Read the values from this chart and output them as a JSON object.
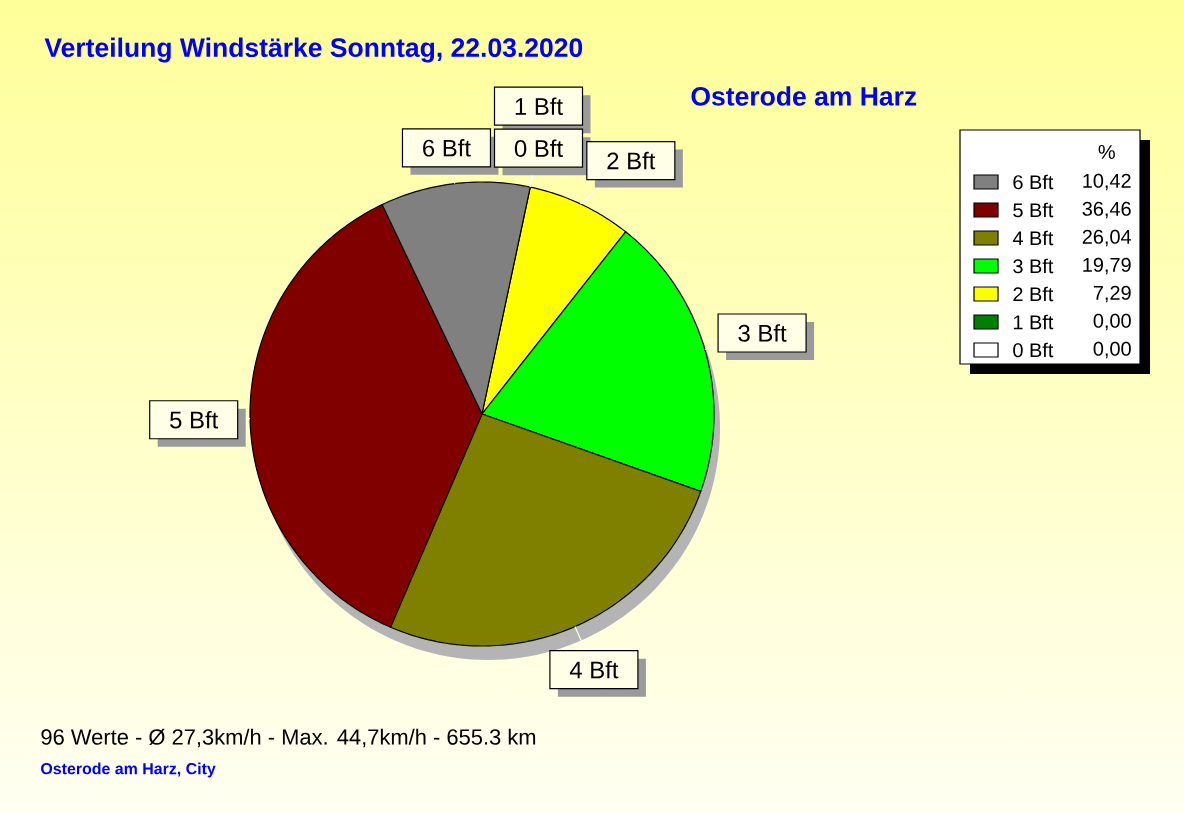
{
  "chart_data": {
    "type": "pie",
    "title": "Verteilung Windstärke  Sonntag, 22.03.2020",
    "subtitle": "Osterode am Harz",
    "categories": [
      "6 Bft",
      "5 Bft",
      "4 Bft",
      "3 Bft",
      "2 Bft",
      "1 Bft",
      "0 Bft"
    ],
    "values": [
      10.42,
      36.46,
      26.04,
      19.79,
      7.29,
      0,
      0
    ],
    "colors": [
      "#808080",
      "#800000",
      "#808000",
      "#00ff00",
      "#ffff00",
      "#008000",
      "#ffffff"
    ],
    "value_labels": [
      "10,42",
      "36,46",
      "26,04",
      "19,79",
      "7,29",
      "0,00",
      "0,00"
    ],
    "legend": "top right",
    "legend_title": "%",
    "annotations": [
      "96 Werte - Ø 27,3km/h - Max. 44,7km/h - 655.3 km",
      "Osterode am Harz, City"
    ]
  }
}
